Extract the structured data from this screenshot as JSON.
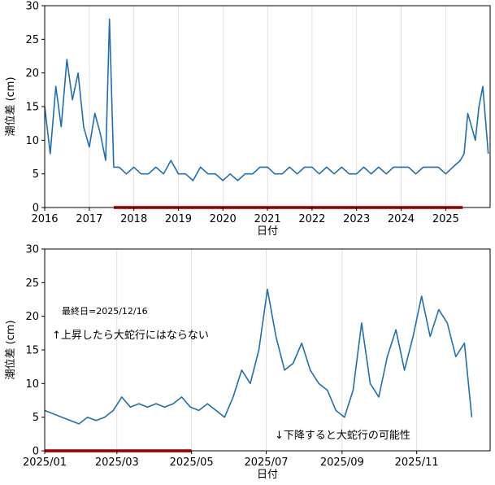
{
  "chart_data": [
    {
      "type": "line",
      "xlabel": "日付",
      "ylabel": "潮位差 (cm)",
      "ylim": [
        0,
        30
      ],
      "xlim": [
        "2016-01-01",
        "2025-12-31"
      ],
      "y_ticks": [
        0,
        5,
        10,
        15,
        20,
        25,
        30
      ],
      "x_ticks": [
        "2016",
        "2017",
        "2018",
        "2019",
        "2020",
        "2021",
        "2022",
        "2023",
        "2024",
        "2025"
      ],
      "line_color": "#1f6fb0",
      "highlight": {
        "color": "#e01e1e",
        "x": [
          "2017-07-20",
          "2025-05-20"
        ],
        "y": 0
      },
      "series": [
        {
          "x": [
            "2016-01-01",
            "2016-02-15",
            "2016-04-01",
            "2016-05-15",
            "2016-07-01",
            "2016-08-15",
            "2016-10-01",
            "2016-11-15",
            "2017-01-01",
            "2017-02-15",
            "2017-04-01",
            "2017-05-15",
            "2017-06-15",
            "2017-07-20",
            "2017-09-01",
            "2017-11-01",
            "2018-01-01",
            "2018-03-01",
            "2018-05-01",
            "2018-07-01",
            "2018-09-01",
            "2018-11-01",
            "2019-01-01",
            "2019-03-01",
            "2019-05-01",
            "2019-07-01",
            "2019-09-01",
            "2019-11-01",
            "2020-01-01",
            "2020-03-01",
            "2020-05-01",
            "2020-07-01",
            "2020-09-01",
            "2020-11-01",
            "2021-01-01",
            "2021-03-01",
            "2021-05-01",
            "2021-07-01",
            "2021-09-01",
            "2021-11-01",
            "2022-01-01",
            "2022-03-01",
            "2022-05-01",
            "2022-07-01",
            "2022-09-01",
            "2022-11-01",
            "2023-01-01",
            "2023-03-01",
            "2023-05-01",
            "2023-07-01",
            "2023-09-01",
            "2023-11-01",
            "2024-01-01",
            "2024-03-01",
            "2024-05-01",
            "2024-07-01",
            "2024-09-01",
            "2024-11-01",
            "2025-01-01",
            "2025-03-01",
            "2025-05-01",
            "2025-06-01",
            "2025-07-01",
            "2025-08-01",
            "2025-09-01",
            "2025-10-01",
            "2025-11-01",
            "2025-12-16"
          ],
          "y": [
            15,
            8,
            18,
            12,
            22,
            16,
            20,
            12,
            9,
            14,
            11,
            7,
            28,
            6,
            6,
            5,
            6,
            5,
            5,
            6,
            5,
            7,
            5,
            5,
            4,
            6,
            5,
            5,
            4,
            5,
            4,
            5,
            5,
            6,
            6,
            5,
            5,
            6,
            5,
            6,
            6,
            5,
            6,
            5,
            6,
            5,
            5,
            6,
            5,
            6,
            5,
            6,
            6,
            6,
            5,
            6,
            6,
            6,
            5,
            6,
            7,
            8,
            14,
            12,
            10,
            15,
            18,
            8
          ]
        }
      ]
    },
    {
      "type": "line",
      "xlabel": "日付",
      "ylabel": "潮位差 (cm)",
      "ylim": [
        0,
        30
      ],
      "xlim": [
        "2025-01-01",
        "2025-12-31"
      ],
      "y_ticks": [
        0,
        5,
        10,
        15,
        20,
        25,
        30
      ],
      "x_ticks": [
        "2025/01",
        "2025/03",
        "2025/05",
        "2025/07",
        "2025/09",
        "2025/11"
      ],
      "line_color": "#1f6fb0",
      "highlight": {
        "color": "#e01e1e",
        "x": [
          "2025-01-01",
          "2025-05-01"
        ],
        "y": 0
      },
      "series": [
        {
          "x": [
            "2025-01-01",
            "2025-01-08",
            "2025-01-15",
            "2025-01-22",
            "2025-01-29",
            "2025-02-05",
            "2025-02-12",
            "2025-02-19",
            "2025-02-26",
            "2025-03-05",
            "2025-03-12",
            "2025-03-19",
            "2025-03-26",
            "2025-04-02",
            "2025-04-09",
            "2025-04-16",
            "2025-04-23",
            "2025-04-30",
            "2025-05-07",
            "2025-05-14",
            "2025-05-21",
            "2025-05-28",
            "2025-06-04",
            "2025-06-11",
            "2025-06-18",
            "2025-06-25",
            "2025-07-02",
            "2025-07-09",
            "2025-07-16",
            "2025-07-23",
            "2025-07-30",
            "2025-08-06",
            "2025-08-13",
            "2025-08-20",
            "2025-08-27",
            "2025-09-03",
            "2025-09-10",
            "2025-09-17",
            "2025-09-24",
            "2025-10-01",
            "2025-10-08",
            "2025-10-15",
            "2025-10-22",
            "2025-10-29",
            "2025-11-05",
            "2025-11-12",
            "2025-11-19",
            "2025-11-26",
            "2025-12-03",
            "2025-12-10",
            "2025-12-16"
          ],
          "y": [
            6,
            5.5,
            5,
            4.5,
            4,
            5,
            4.5,
            5,
            6,
            8,
            6.5,
            7,
            6.5,
            7,
            6.5,
            7,
            8,
            6.5,
            6,
            7,
            6,
            5,
            8,
            12,
            10,
            15,
            24,
            17,
            12,
            13,
            16,
            12,
            10,
            9,
            6,
            5,
            9,
            19,
            10,
            8,
            14,
            18,
            12,
            17,
            23,
            17,
            21,
            19,
            14,
            16,
            5
          ]
        }
      ]
    }
  ],
  "annotations": {
    "last_date": "最終日=2025/12/16",
    "up_text": "↑上昇したら大蛇行にはならない",
    "down_text": "↓下降すると大蛇行の可能性"
  }
}
